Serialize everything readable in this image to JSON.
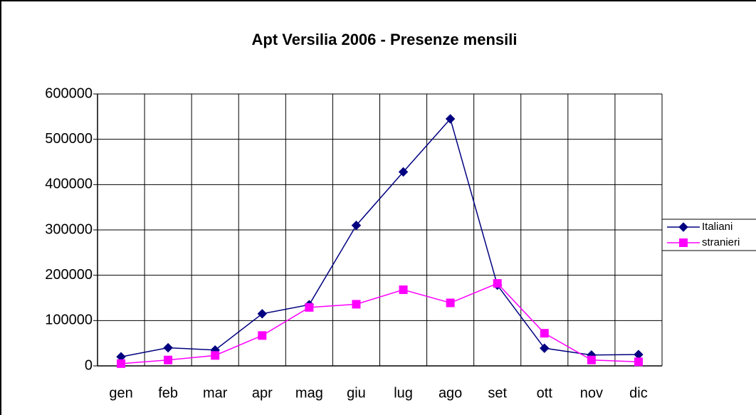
{
  "chart_data": {
    "type": "line",
    "title": "Apt Versilia 2006 - Presenze mensili",
    "categories": [
      "gen",
      "feb",
      "mar",
      "apr",
      "mag",
      "giu",
      "lug",
      "ago",
      "set",
      "ott",
      "nov",
      "dic"
    ],
    "series": [
      {
        "name": "Italiani",
        "color": "#000080",
        "marker": "diamond",
        "values": [
          20000,
          40000,
          35000,
          115000,
          135000,
          310000,
          428000,
          545000,
          178000,
          39000,
          24000,
          25000
        ]
      },
      {
        "name": "stranieri",
        "color": "#ff00ff",
        "marker": "square",
        "values": [
          5000,
          13000,
          23000,
          67000,
          129000,
          136000,
          168000,
          139000,
          182000,
          72000,
          13000,
          9000
        ]
      }
    ],
    "ylim": [
      0,
      600000
    ],
    "yticks": [
      0,
      100000,
      200000,
      300000,
      400000,
      500000,
      600000
    ],
    "grid": true,
    "legend": "right"
  }
}
